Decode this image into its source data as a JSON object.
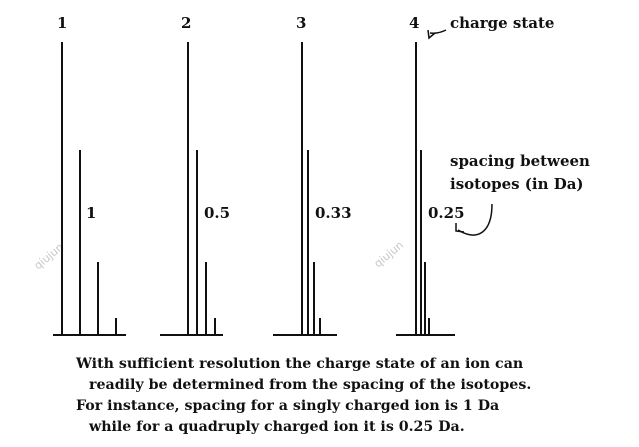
{
  "colors": {
    "ink": "#111111",
    "watermark": "#c9c9c9"
  },
  "panels": [
    {
      "charge": "1",
      "spacing": "1"
    },
    {
      "charge": "2",
      "spacing": "0.5"
    },
    {
      "charge": "3",
      "spacing": "0.33"
    },
    {
      "charge": "4",
      "spacing": "0.25"
    }
  ],
  "annotations": {
    "charge_state": "charge state",
    "spacing_line1": "spacing between",
    "spacing_line2": "isotopes (in Da)"
  },
  "caption": [
    "With sufficient resolution the charge state of an ion can",
    "readily be determined from the spacing of the isotopes.",
    "For instance, spacing for a singly charged ion is 1 Da",
    "while for a quadruply charged ion it is 0.25 Da."
  ],
  "watermark": "qiujun"
}
